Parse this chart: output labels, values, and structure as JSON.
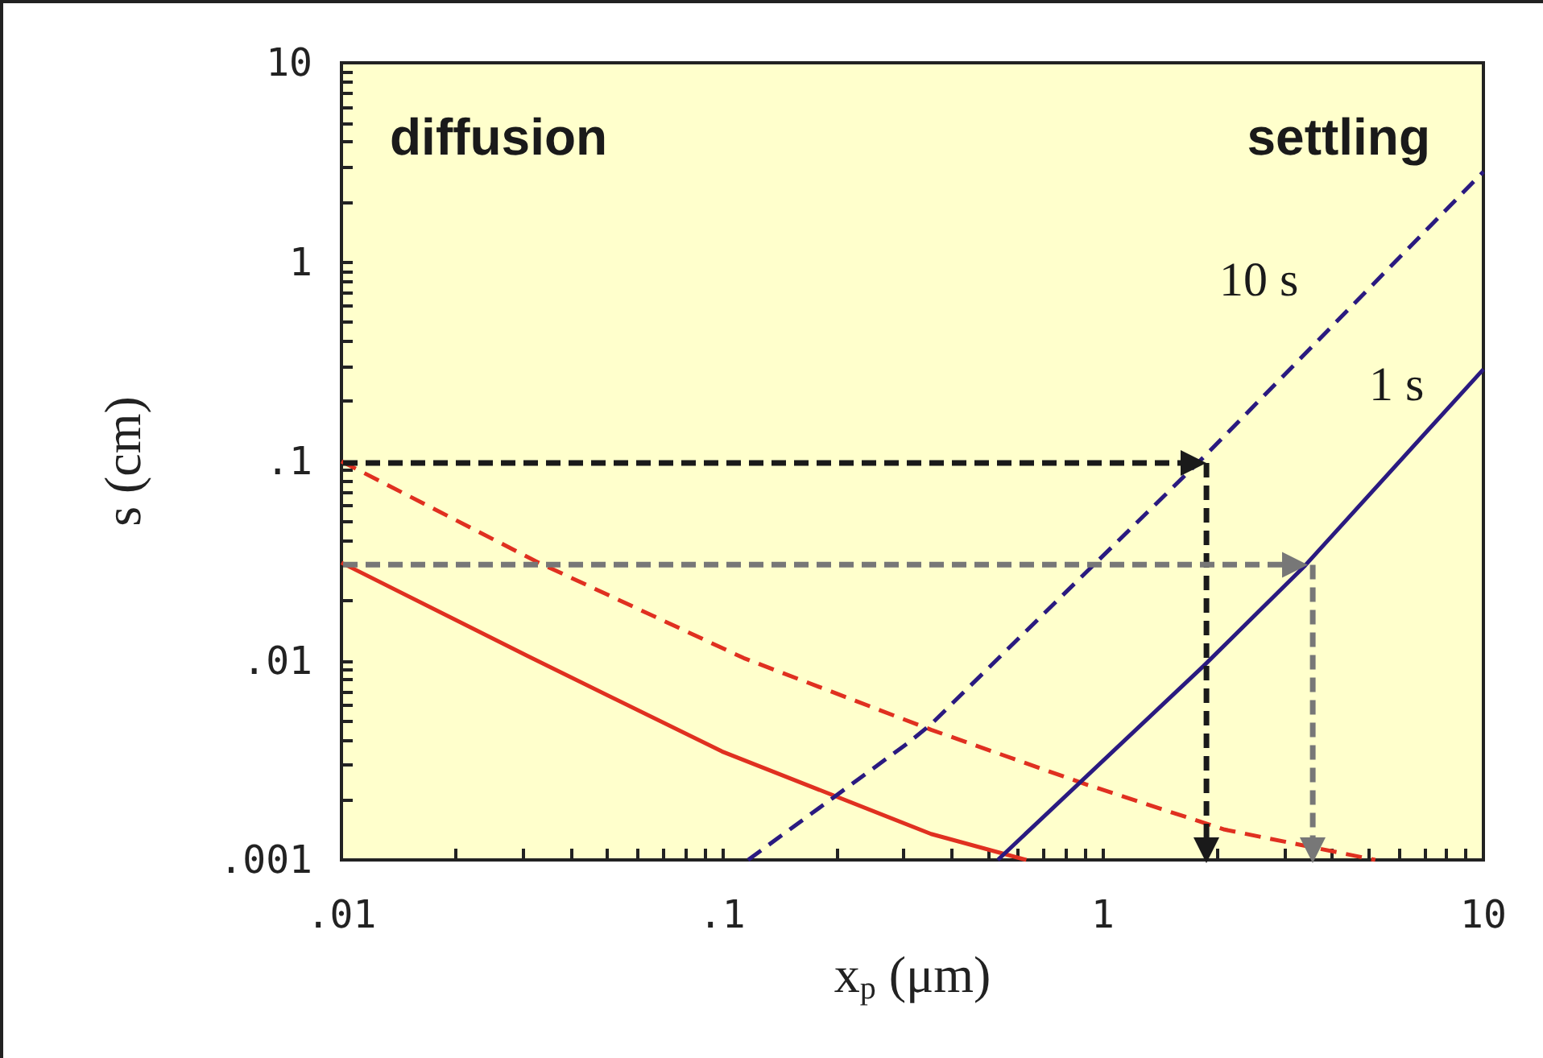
{
  "chart_data": {
    "type": "line",
    "xlabel": "x$_{p}$ (μm)",
    "ylabel": "s (cm)",
    "log": "xy",
    "grid": false,
    "marker": "none",
    "xlim": [
      0.01,
      10
    ],
    "ylim": [
      0.001,
      10
    ],
    "xticks": [
      {
        "value": 0.01,
        "label": ".01"
      },
      {
        "value": 0.02,
        "label": null
      },
      {
        "value": 0.03,
        "label": null
      },
      {
        "value": 0.04,
        "label": null
      },
      {
        "value": 0.05,
        "label": null
      },
      {
        "value": 0.06,
        "label": null
      },
      {
        "value": 0.07,
        "label": null
      },
      {
        "value": 0.08,
        "label": null
      },
      {
        "value": 0.09,
        "label": null
      },
      {
        "value": 0.1,
        "label": ".1"
      },
      {
        "value": 0.2,
        "label": null
      },
      {
        "value": 0.3,
        "label": null
      },
      {
        "value": 0.4,
        "label": null
      },
      {
        "value": 0.5,
        "label": null
      },
      {
        "value": 0.6,
        "label": null
      },
      {
        "value": 0.7,
        "label": null
      },
      {
        "value": 0.8,
        "label": null
      },
      {
        "value": 0.9,
        "label": null
      },
      {
        "value": 1,
        "label": "1"
      },
      {
        "value": 2,
        "label": null
      },
      {
        "value": 3,
        "label": null
      },
      {
        "value": 4,
        "label": null
      },
      {
        "value": 5,
        "label": null
      },
      {
        "value": 6,
        "label": null
      },
      {
        "value": 7,
        "label": null
      },
      {
        "value": 8,
        "label": null
      },
      {
        "value": 9,
        "label": null
      },
      {
        "value": 10,
        "label": "10"
      }
    ],
    "yticks": [
      {
        "value": 0.001,
        "label": ".001"
      },
      {
        "value": 0.002,
        "label": null
      },
      {
        "value": 0.003,
        "label": null
      },
      {
        "value": 0.004,
        "label": null
      },
      {
        "value": 0.005,
        "label": null
      },
      {
        "value": 0.006,
        "label": null
      },
      {
        "value": 0.007,
        "label": null
      },
      {
        "value": 0.008,
        "label": null
      },
      {
        "value": 0.009,
        "label": null
      },
      {
        "value": 0.01,
        "label": ".01"
      },
      {
        "value": 0.02,
        "label": null
      },
      {
        "value": 0.03,
        "label": null
      },
      {
        "value": 0.04,
        "label": null
      },
      {
        "value": 0.05,
        "label": null
      },
      {
        "value": 0.06,
        "label": null
      },
      {
        "value": 0.07,
        "label": null
      },
      {
        "value": 0.08,
        "label": null
      },
      {
        "value": 0.09,
        "label": null
      },
      {
        "value": 0.1,
        "label": ".1"
      },
      {
        "value": 0.2,
        "label": null
      },
      {
        "value": 0.3,
        "label": null
      },
      {
        "value": 0.4,
        "label": null
      },
      {
        "value": 0.5,
        "label": null
      },
      {
        "value": 0.6,
        "label": null
      },
      {
        "value": 0.7,
        "label": null
      },
      {
        "value": 0.8,
        "label": null
      },
      {
        "value": 0.9,
        "label": null
      },
      {
        "value": 1,
        "label": "1"
      },
      {
        "value": 2,
        "label": null
      },
      {
        "value": 3,
        "label": null
      },
      {
        "value": 4,
        "label": null
      },
      {
        "value": 5,
        "label": null
      },
      {
        "value": 6,
        "label": null
      },
      {
        "value": 7,
        "label": null
      },
      {
        "value": 8,
        "label": null
      },
      {
        "value": 9,
        "label": null
      },
      {
        "value": 10,
        "label": "10"
      }
    ],
    "series": [
      {
        "color": "#e03020",
        "line_style": "solid",
        "x": [
          0.01,
          0.031,
          0.1,
          0.354,
          0.63
        ],
        "values": [
          0.031,
          0.0105,
          0.0035,
          0.00135,
          0.001
        ]
      },
      {
        "color": "#e03020",
        "line_style": "dashed",
        "x": [
          0.01,
          0.033,
          0.114,
          0.354,
          0.9,
          2.09,
          5.2
        ],
        "values": [
          0.1,
          0.031,
          0.0103,
          0.0045,
          0.0024,
          0.00142,
          0.001
        ]
      },
      {
        "color": "#2a1a80",
        "line_style": "dashed",
        "x": [
          0.117,
          0.31,
          0.354,
          1.86,
          10
        ],
        "values": [
          0.001,
          0.0039,
          0.0048,
          0.107,
          2.84
        ]
      },
      {
        "color": "#2a1a80",
        "line_style": "solid",
        "x": [
          0.53,
          1.84,
          3.4,
          10
        ],
        "values": [
          0.001,
          0.0094,
          0.03,
          0.29
        ]
      }
    ],
    "annotations": [
      "diffusion",
      "settling",
      "10 s",
      "1 s"
    ]
  }
}
